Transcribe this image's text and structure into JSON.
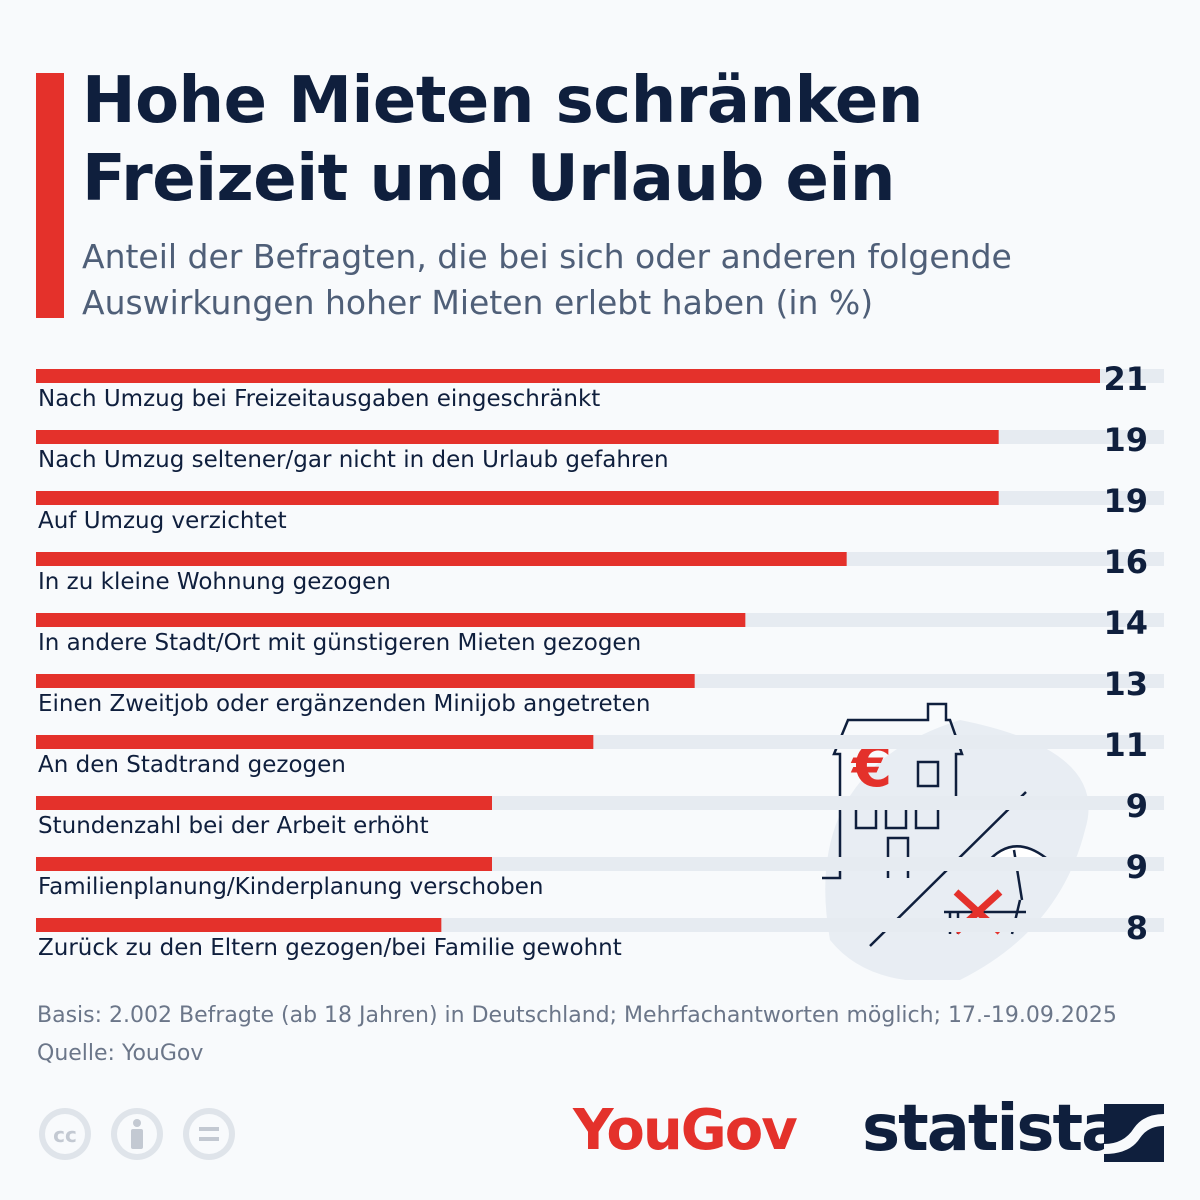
{
  "title": "Hohe Mieten schränken Freizeit und Urlaub ein",
  "subtitle": "Anteil der Befragten, die bei sich oder anderen folgende Auswirkungen hoher Mieten erlebt haben (in %)",
  "colors": {
    "accent": "#e4312b",
    "track": "#e6ebf1",
    "text": "#0f1f3d",
    "muted": "#6b7689"
  },
  "chart_data": {
    "type": "bar",
    "orientation": "horizontal",
    "categories": [
      "Nach Umzug bei Freizeitausgaben eingeschränkt",
      "Nach Umzug seltener/gar nicht in den Urlaub gefahren",
      "Auf Umzug verzichtet",
      "In zu kleine Wohnung gezogen",
      "In andere Stadt/Ort mit günstigeren Mieten gezogen",
      "Einen Zweitjob oder ergänzenden Minijob angetreten",
      "An den Stadtrand gezogen",
      "Stundenzahl bei der Arbeit erhöht",
      "Familienplanung/Kinderplanung verschoben",
      "Zurück zu den Eltern gezogen/bei Familie gewohnt"
    ],
    "values": [
      21,
      19,
      19,
      16,
      14,
      13,
      11,
      9,
      9,
      8
    ],
    "xlim": [
      0,
      21
    ],
    "grid": false,
    "legend": "none"
  },
  "illustration": {
    "icons": [
      "house-with-euro-icon",
      "cancelled-beach-holiday-icon"
    ]
  },
  "footer": {
    "basis": "Basis: 2.002 Befragte (ab 18 Jahren) in Deutschland; Mehrfachantworten möglich; 17.-19.09.2025",
    "source": "Quelle: YouGov"
  },
  "license_icons": [
    "cc-icon",
    "attribution-icon",
    "no-derivatives-icon"
  ],
  "logos": {
    "partner": "YouGov",
    "brand": "statista"
  }
}
